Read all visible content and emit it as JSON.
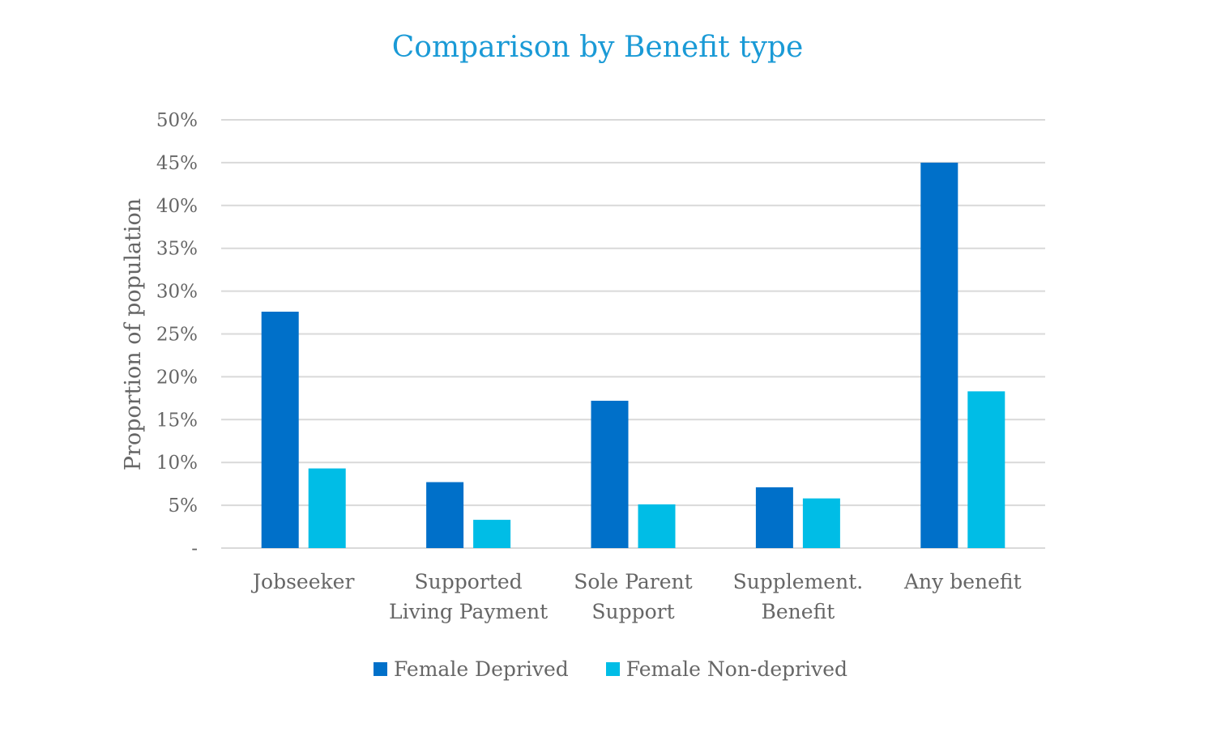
{
  "chart_data": {
    "type": "bar",
    "title": "Comparison by Benefit type",
    "ylabel": "Proportion of population",
    "xlabel": "",
    "categories": [
      [
        "Jobseeker"
      ],
      [
        "Supported",
        "Living Payment"
      ],
      [
        "Sole Parent",
        "Support"
      ],
      [
        "Supplement.",
        "Benefit"
      ],
      [
        "Any benefit"
      ]
    ],
    "series": [
      {
        "name": "Female Deprived",
        "color": "#0070c9",
        "values": [
          27.6,
          7.7,
          17.2,
          7.1,
          45.0
        ]
      },
      {
        "name": "Female Non-deprived",
        "color": "#00bde6",
        "values": [
          9.3,
          3.3,
          5.1,
          5.8,
          18.3
        ]
      }
    ],
    "ylim": [
      0,
      50
    ],
    "yticks": [
      0,
      5,
      10,
      15,
      20,
      25,
      30,
      35,
      40,
      45,
      50
    ],
    "ytick_labels": [
      "-",
      "5%",
      "10%",
      "15%",
      "20%",
      "25%",
      "30%",
      "35%",
      "40%",
      "45%",
      "50%"
    ],
    "grid": true,
    "gridline_color": "#d9d9d9",
    "legend_position": "bottom-center"
  }
}
